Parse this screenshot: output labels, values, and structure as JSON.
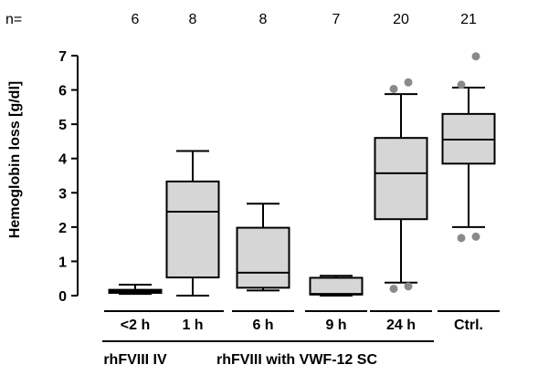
{
  "chart_data": {
    "type": "box",
    "ylabel": "Hemoglobin loss [g/dl]",
    "ylim": [
      0,
      7
    ],
    "yticks": [
      "0",
      "1",
      "2",
      "3",
      "4",
      "5",
      "6",
      "7"
    ],
    "n_prefix": "n=",
    "categories": [
      {
        "label": "<2 h",
        "n": "6",
        "whisker_low": 0.05,
        "q1": 0.08,
        "median": 0.12,
        "q3": 0.17,
        "whisker_high": 0.32,
        "outliers": []
      },
      {
        "label": "1 h",
        "n": "8",
        "whisker_low": 0.0,
        "q1": 0.53,
        "median": 2.45,
        "q3": 3.33,
        "whisker_high": 4.22,
        "outliers": []
      },
      {
        "label": "6 h",
        "n": "8",
        "whisker_low": 0.15,
        "q1": 0.23,
        "median": 0.67,
        "q3": 1.98,
        "whisker_high": 2.68,
        "outliers": []
      },
      {
        "label": "9 h",
        "n": "7",
        "whisker_low": 0.0,
        "q1": 0.03,
        "median": 0.05,
        "q3": 0.52,
        "whisker_high": 0.58,
        "outliers": []
      },
      {
        "label": "24 h",
        "n": "20",
        "whisker_low": 0.38,
        "q1": 2.23,
        "median": 3.57,
        "q3": 4.6,
        "whisker_high": 5.88,
        "outliers": [
          0.2,
          0.27,
          6.03,
          6.22
        ]
      },
      {
        "label": "Ctrl.",
        "n": "21",
        "whisker_low": 2.0,
        "q1": 3.85,
        "median": 4.55,
        "q3": 5.3,
        "whisker_high": 6.07,
        "outliers": [
          1.68,
          1.72,
          6.15,
          6.98
        ]
      }
    ],
    "groups": [
      {
        "label": "rhFVIII IV",
        "span": [
          0,
          0
        ]
      },
      {
        "label": "rhFVIII with VWF-12 SC",
        "span": [
          1,
          4
        ]
      }
    ],
    "colors": {
      "box_fill": "#d6d6d6",
      "outlier": "#8a8a8a",
      "line": "#000000"
    }
  }
}
